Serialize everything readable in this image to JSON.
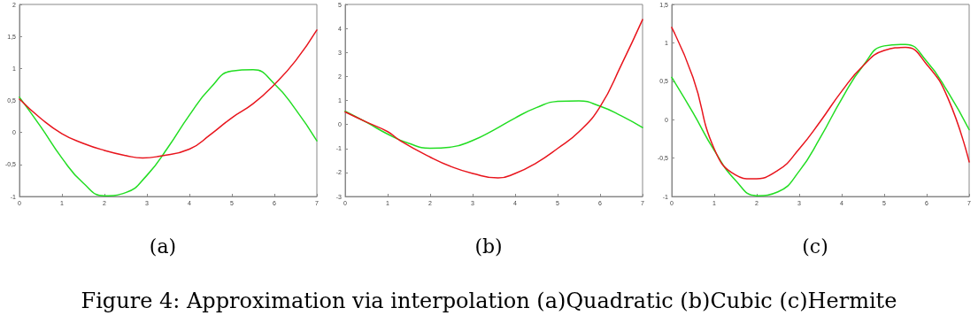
{
  "chart_data": [
    {
      "type": "line",
      "title": "(a)",
      "annotations": [
        "Figure 4:  Approximation via interpolation (a)Quadratic (b)Cubic (c)Hermite"
      ],
      "xlim": [
        0,
        7
      ],
      "xticks": [
        0,
        1,
        2,
        3,
        4,
        5,
        6,
        7
      ],
      "ylim": [
        -1,
        2
      ],
      "yticks": [
        -1,
        {
          "value": -0.5,
          "label": "-0,5"
        },
        0,
        {
          "value": 0.5,
          "label": "0,5"
        },
        1,
        {
          "value": 1.5,
          "label": "1,5"
        },
        2
      ],
      "grid": false,
      "marker": "none",
      "series": [
        {
          "color": "#22dd22",
          "x": [
            0,
            0.5,
            1,
            1.5,
            2,
            2.5,
            3,
            3.5,
            4,
            4.5,
            5,
            5.5,
            6,
            6.5,
            7
          ],
          "values": [
            0.55,
            0.09,
            -0.4,
            -0.79,
            -0.99,
            -0.94,
            -0.67,
            -0.23,
            0.27,
            0.7,
            0.96,
            0.98,
            0.76,
            0.36,
            -0.13
          ]
        },
        {
          "color": "#e8141c",
          "x": [
            0,
            0.5,
            1,
            1.5,
            2,
            2.5,
            2.9,
            3.3,
            4,
            4.5,
            5,
            5.5,
            6,
            6.5,
            7
          ],
          "values": [
            0.52,
            0.22,
            -0.02,
            -0.17,
            -0.28,
            -0.36,
            -0.4,
            -0.37,
            -0.26,
            -0.03,
            0.23,
            0.45,
            0.75,
            1.12,
            1.6
          ]
        }
      ]
    },
    {
      "type": "line",
      "title": "(b)",
      "xlim": [
        0,
        7
      ],
      "xticks": [
        0,
        1,
        2,
        3,
        4,
        5,
        6,
        7
      ],
      "ylim": [
        -3,
        5
      ],
      "yticks": [
        -3,
        -2,
        -1,
        0,
        1,
        2,
        3,
        4,
        5
      ],
      "grid": false,
      "marker": "none",
      "series": [
        {
          "color": "#22dd22",
          "x": [
            0,
            0.5,
            1,
            1.5,
            2,
            2.5,
            3,
            3.5,
            4,
            4.5,
            5,
            5.5,
            6,
            6.5,
            7
          ],
          "values": [
            0.55,
            0.09,
            -0.4,
            -0.79,
            -0.99,
            -0.94,
            -0.67,
            -0.23,
            0.27,
            0.7,
            0.96,
            0.98,
            0.76,
            0.36,
            -0.13
          ]
        },
        {
          "color": "#e8141c",
          "x": [
            0,
            0.5,
            1,
            1.3,
            2,
            2.5,
            3,
            3.6,
            4,
            4.5,
            5,
            5.5,
            6,
            6.5,
            7
          ],
          "values": [
            0.52,
            0.1,
            -0.3,
            -0.68,
            -1.36,
            -1.76,
            -2.04,
            -2.23,
            -2.04,
            -1.6,
            -1.0,
            -0.31,
            0.74,
            2.48,
            4.37
          ]
        }
      ]
    },
    {
      "type": "line",
      "title": "(c)",
      "xlim": [
        0,
        7
      ],
      "xticks": [
        0,
        1,
        2,
        3,
        4,
        5,
        6,
        7
      ],
      "ylim": [
        -1,
        1.5
      ],
      "yticks": [
        -1,
        {
          "value": -0.5,
          "label": "-0,5"
        },
        0,
        {
          "value": 0.5,
          "label": "0,5"
        },
        1,
        {
          "value": 1.5,
          "label": "1,5"
        }
      ],
      "grid": false,
      "marker": "none",
      "series": [
        {
          "color": "#22dd22",
          "x": [
            0,
            0.5,
            1,
            1.5,
            2,
            2.5,
            3,
            3.5,
            4,
            4.5,
            5,
            5.5,
            6,
            6.5,
            7
          ],
          "values": [
            0.55,
            0.09,
            -0.4,
            -0.79,
            -0.99,
            -0.94,
            -0.67,
            -0.23,
            0.27,
            0.7,
            0.96,
            0.98,
            0.76,
            0.36,
            -0.13
          ]
        },
        {
          "color": "#e8141c",
          "x": [
            0,
            0.5,
            1,
            1.5,
            1.9,
            2.5,
            3,
            3.5,
            4,
            4.5,
            5,
            5.5,
            6,
            6.5,
            7
          ],
          "values": [
            1.2,
            0.55,
            -0.38,
            -0.72,
            -0.77,
            -0.66,
            -0.38,
            -0.02,
            0.37,
            0.7,
            0.9,
            0.94,
            0.72,
            0.28,
            -0.55
          ]
        }
      ]
    }
  ]
}
